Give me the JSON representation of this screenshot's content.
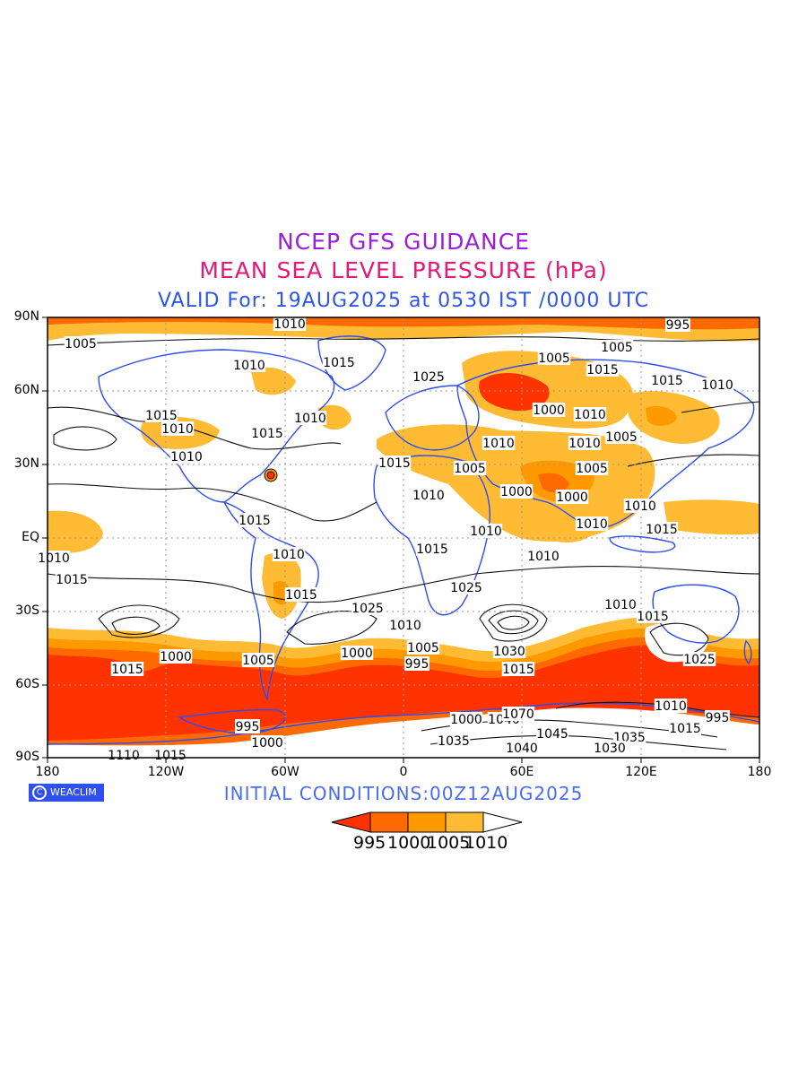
{
  "header": {
    "title": "NCEP GFS GUIDANCE",
    "subtitle": "MEAN SEA LEVEL PRESSURE (hPa)",
    "valid": "VALID For: 19AUG2025 at 0530 IST /0000 UTC"
  },
  "footer": {
    "initial_conditions": "INITIAL CONDITIONS:00Z12AUG2025",
    "logo_text": "WEACLIM"
  },
  "axes": {
    "lat_labels": [
      "90N",
      "60N",
      "30N",
      "EQ",
      "30S",
      "60S",
      "90S"
    ],
    "lon_labels": [
      "180",
      "120W",
      "60W",
      "0",
      "60E",
      "120E",
      "180"
    ]
  },
  "colorbar": {
    "colors": [
      "#ff3300",
      "#ff6a00",
      "#ff9900",
      "#ffbb33",
      "#ffffff"
    ],
    "labels": [
      "995",
      "1000",
      "1005",
      "1010"
    ]
  },
  "contour_labels": [
    "1010",
    "995",
    "1005",
    "1005",
    "1005",
    "1010",
    "1015",
    "1025",
    "1015",
    "1015",
    "1010",
    "1000",
    "1010",
    "1015",
    "1010",
    "1010",
    "1015",
    "1005",
    "1010",
    "1010",
    "1010",
    "1015",
    "1005",
    "1005",
    "1000",
    "1000",
    "1010",
    "1010",
    "1010",
    "1015",
    "1015",
    "1010",
    "1015",
    "1010",
    "1010",
    "1015",
    "1025",
    "1010",
    "1025",
    "1030",
    "1015",
    "1010",
    "1015",
    "1025",
    "1000",
    "1010",
    "1005",
    "1000",
    "995",
    "1015",
    "1015",
    "1005",
    "995",
    "1000",
    "1010",
    "995",
    "1015",
    "1035",
    "1000",
    "1040",
    "1070",
    "1045",
    "1035",
    "1030",
    "1040",
    "1110",
    "1015"
  ],
  "colors": {
    "land_outline": "#2e4cf0",
    "title_purple": "#9a1fd6",
    "title_magenta": "#e0197a",
    "title_blue": "#2f55e8"
  }
}
